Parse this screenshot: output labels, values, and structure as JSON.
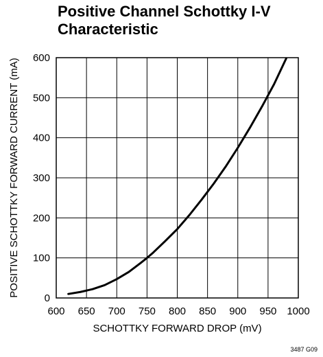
{
  "chart_data": {
    "type": "line",
    "title": "Positive Channel Schottky I-V Characteristic",
    "xlabel": "SCHOTTKY FORWARD DROP (mV)",
    "ylabel": "POSITIVE SCHOTTKY FORWARD CURRENT (mA)",
    "xlim": [
      600,
      1000
    ],
    "ylim": [
      0,
      600
    ],
    "xticks": [
      600,
      650,
      700,
      750,
      800,
      850,
      900,
      950,
      1000
    ],
    "yticks": [
      0,
      100,
      200,
      300,
      400,
      500,
      600
    ],
    "grid": true,
    "line_color": "#000000",
    "series": [
      {
        "x": [
          620,
          640,
          660,
          680,
          700,
          720,
          740,
          750,
          760,
          780,
          800,
          820,
          840,
          860,
          880,
          900,
          920,
          940,
          960,
          980
        ],
        "y": [
          10,
          15,
          22,
          32,
          47,
          65,
          88,
          100,
          113,
          142,
          172,
          207,
          245,
          285,
          328,
          375,
          425,
          478,
          534,
          598
        ]
      }
    ],
    "figure_code": "3487 G09"
  }
}
